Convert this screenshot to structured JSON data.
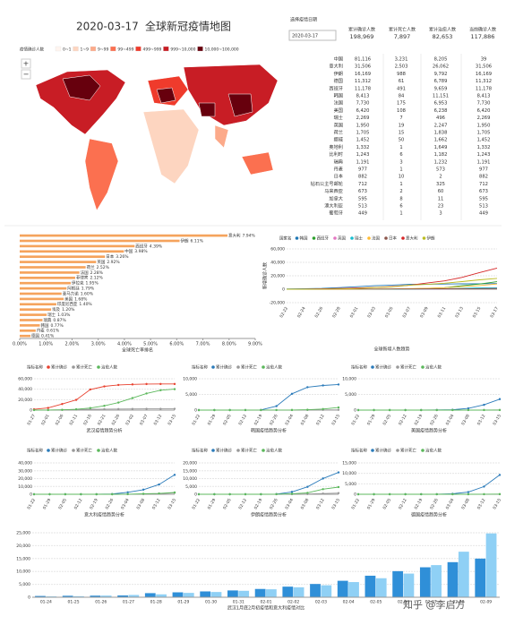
{
  "header": {
    "date": "2020-03-17",
    "title": "全球新冠疫情地图"
  },
  "date_selector": {
    "label": "选择疫情日期",
    "value": "2020-03-17"
  },
  "kpis": [
    {
      "label": "累计确诊人数",
      "value": "198,969",
      "color": "#e8412f"
    },
    {
      "label": "累计死亡人数",
      "value": "7,897",
      "color": "#333333"
    },
    {
      "label": "累计治愈人数",
      "value": "82,653",
      "color": "#2ca25f"
    },
    {
      "label": "当前确诊人数",
      "value": "117,886",
      "color": "#f39c12"
    }
  ],
  "map": {
    "legend_title": "疫情确诊人数",
    "ranges": [
      {
        "label": "0~1",
        "color": "#fff5f0"
      },
      {
        "label": "1~9",
        "color": "#fdd5c0"
      },
      {
        "label": "9~99",
        "color": "#fcaa8a"
      },
      {
        "label": "99~499",
        "color": "#fb7050"
      },
      {
        "label": "499~999",
        "color": "#ef3b2c"
      },
      {
        "label": "999~10,000",
        "color": "#c81d25"
      },
      {
        "label": "10,000~100,000",
        "color": "#67000d"
      }
    ]
  },
  "table": {
    "rows": [
      [
        "中国",
        "81,116",
        "3,231",
        "8,205",
        "39"
      ],
      [
        "意大利",
        "31,506",
        "2,503",
        "26,062",
        "31,506"
      ],
      [
        "伊朗",
        "16,169",
        "988",
        "9,792",
        "16,169"
      ],
      [
        "德国",
        "11,312",
        "61",
        "6,789",
        "11,312"
      ],
      [
        "西班牙",
        "11,178",
        "491",
        "9,659",
        "11,178"
      ],
      [
        "韩国",
        "8,413",
        "84",
        "11,151",
        "8,413"
      ],
      [
        "法国",
        "7,730",
        "175",
        "6,953",
        "7,730"
      ],
      [
        "美国",
        "6,420",
        "108",
        "6,238",
        "6,420"
      ],
      [
        "瑞士",
        "2,269",
        "7",
        "496",
        "2,269"
      ],
      [
        "英国",
        "1,950",
        "19",
        "2,247",
        "1,950"
      ],
      [
        "荷兰",
        "1,705",
        "15",
        "1,838",
        "1,705"
      ],
      [
        "挪威",
        "1,452",
        "50",
        "1,662",
        "1,452"
      ],
      [
        "奥地利",
        "1,332",
        "1",
        "1,649",
        "1,332"
      ],
      [
        "比利时",
        "1,243",
        "6",
        "1,182",
        "1,243"
      ],
      [
        "瑞典",
        "1,191",
        "3",
        "1,232",
        "1,191"
      ],
      [
        "丹麦",
        "977",
        "1",
        "573",
        "977"
      ],
      [
        "日本",
        "882",
        "10",
        "2",
        "882"
      ],
      [
        "钻石公主号邮轮",
        "712",
        "1",
        "325",
        "712"
      ],
      [
        "马来西亚",
        "673",
        "2",
        "60",
        "673"
      ],
      [
        "加拿大",
        "595",
        "8",
        "11",
        "595"
      ],
      [
        "澳大利亚",
        "513",
        "6",
        "23",
        "513"
      ],
      [
        "葡萄牙",
        "449",
        "1",
        "3",
        "449"
      ]
    ]
  },
  "watermark": "知乎 @李启方",
  "chart_data": [
    {
      "type": "hbar",
      "title": "全球死亡率排名",
      "color": "#f5a35c",
      "label_color": "#e8412f",
      "categories": [
        "意大利",
        "伊朗",
        "西班牙",
        "中国",
        "日本",
        "英国",
        "荷兰",
        "法国",
        "菲律宾",
        "伊拉克",
        "阿根廷",
        "圣马力诺",
        "美国",
        "印度尼西亚",
        "埃及",
        "瑞士",
        "瑞典",
        "韩国",
        "丹麦",
        "德国"
      ],
      "values": [
        7.94,
        6.11,
        4.39,
        3.98,
        3.26,
        2.92,
        2.52,
        2.28,
        2.12,
        1.95,
        1.79,
        1.6,
        1.68,
        1.4,
        1.2,
        1.03,
        0.87,
        0.77,
        0.61,
        0.41
      ],
      "value_labels": [
        "7.94%",
        "6.11%",
        "4.39%",
        "3.98%",
        "3.26%",
        "2.92%",
        "2.52%",
        "2.28%",
        "2.12%",
        "1.95%",
        "1.79%",
        "1.60%",
        "1.68%",
        "1.40%",
        "1.20%",
        "1.03%",
        "0.87%",
        "0.77%",
        "0.61%",
        "0.41%"
      ],
      "xlim": [
        0,
        9
      ],
      "xticks": [
        {
          "value": 0,
          "label": "0.00%"
        },
        {
          "value": 1,
          "label": "1.00%"
        },
        {
          "value": 2,
          "label": "2.00%"
        },
        {
          "value": 3,
          "label": "3.00%"
        },
        {
          "value": 4,
          "label": "4.00%"
        },
        {
          "value": 5,
          "label": "5.00%"
        },
        {
          "value": 6,
          "label": "6.00%"
        },
        {
          "value": 7,
          "label": "7.00%"
        },
        {
          "value": 8,
          "label": "8.00%"
        },
        {
          "value": 9,
          "label": "9.00%"
        }
      ]
    },
    {
      "type": "line",
      "title": "全球新增人数趋势",
      "y_label": "新增确诊人数",
      "legend_title": "国家名",
      "dots": false,
      "categories": [
        "02-22",
        "02-24",
        "02-26",
        "02-28",
        "03-01",
        "03-03",
        "03-05",
        "03-07",
        "03-09",
        "03-11",
        "03-13",
        "03-15",
        "03-17"
      ],
      "ylim": [
        -20000,
        60000
      ],
      "yticks": [
        {
          "value": -20000,
          "label": "-20,000"
        },
        0,
        {
          "value": 20000,
          "label": "20,000"
        },
        {
          "value": 40000,
          "label": "40,000"
        },
        {
          "value": 60000,
          "label": "60,000"
        }
      ],
      "series": [
        {
          "name": "韩国",
          "color": "#1f77b4",
          "values": [
            433,
            833,
            1261,
            2337,
            3736,
            5186,
            6088,
            7134,
            7478,
            7755,
            7979,
            8162,
            8413
          ]
        },
        {
          "name": "西班牙",
          "color": "#2ca02c",
          "values": [
            2,
            2,
            13,
            32,
            84,
            151,
            261,
            525,
            1231,
            2277,
            5232,
            7798,
            11178
          ]
        },
        {
          "name": "英国",
          "color": "#e377c2",
          "values": [
            9,
            13,
            13,
            20,
            36,
            51,
            116,
            206,
            321,
            460,
            798,
            1144,
            1950
          ]
        },
        {
          "name": "瑞士",
          "color": "#17becf",
          "values": [
            0,
            0,
            1,
            8,
            27,
            56,
            90,
            268,
            374,
            645,
            1139,
            2200,
            2269
          ]
        },
        {
          "name": "法国",
          "color": "#ffbb33",
          "values": [
            12,
            12,
            17,
            57,
            130,
            212,
            423,
            949,
            1412,
            2284,
            3667,
            5423,
            7730
          ]
        },
        {
          "name": "日本",
          "color": "#8c564b",
          "values": [
            132,
            157,
            189,
            228,
            256,
            284,
            349,
            455,
            530,
            639,
            701,
            780,
            882
          ]
        },
        {
          "name": "意大利",
          "color": "#d62728",
          "values": [
            62,
            229,
            470,
            1128,
            1694,
            2502,
            3858,
            5883,
            9172,
            12462,
            17660,
            24747,
            31506
          ]
        },
        {
          "name": "伊朗",
          "color": "#bcbd22",
          "values": [
            28,
            61,
            139,
            388,
            978,
            2336,
            3513,
            5823,
            7161,
            9000,
            11364,
            13938,
            16169
          ]
        }
      ]
    },
    {
      "type": "line",
      "title": "武汉疫情趋势分析",
      "legend_title": "指标名称",
      "dots": true,
      "categories": [
        "01-27",
        "02-01",
        "02-06",
        "02-11",
        "02-16",
        "02-21",
        "02-26",
        "03-02",
        "03-07",
        "03-12",
        "03-15"
      ],
      "ylim": [
        0,
        60000
      ],
      "yticks": [
        0,
        {
          "value": 20000,
          "label": "20,000"
        },
        {
          "value": 40000,
          "label": "40,000"
        },
        {
          "value": 60000,
          "label": "60,000"
        }
      ],
      "series": [
        {
          "name": "累计确诊",
          "color": "#e8412f",
          "values": [
            1590,
            4109,
            11618,
            19558,
            39462,
            45346,
            48137,
            49122,
            49948,
            50003,
            50003
          ]
        },
        {
          "name": "累计死亡",
          "color": "#999999",
          "values": [
            85,
            224,
            478,
            1036,
            1497,
            1836,
            2104,
            2282,
            2388,
            2430,
            2469
          ]
        },
        {
          "name": "治愈人数",
          "color": "#5cb85c",
          "values": [
            46,
            166,
            524,
            1566,
            3902,
            8207,
            14412,
            22981,
            31829,
            37989,
            40079
          ]
        }
      ]
    },
    {
      "type": "line",
      "title": "韩国疫情趋势分析",
      "legend_title": "指标名称",
      "dots": true,
      "categories": [
        "01-22",
        "01-29",
        "02-05",
        "02-12",
        "02-19",
        "02-26",
        "03-04",
        "03-08",
        "03-12",
        "03-15"
      ],
      "ylim": [
        0,
        10000
      ],
      "yticks": [
        0,
        {
          "value": 5000,
          "label": "5,000"
        },
        {
          "value": 10000,
          "label": "10,000"
        }
      ],
      "series": [
        {
          "name": "累计确诊",
          "color": "#2b7bba",
          "values": [
            1,
            4,
            23,
            28,
            46,
            1261,
            5186,
            7313,
            7869,
            8162
          ]
        },
        {
          "name": "累计死亡",
          "color": "#999999",
          "values": [
            0,
            0,
            0,
            0,
            0,
            12,
            28,
            50,
            66,
            75
          ]
        },
        {
          "name": "治愈人数",
          "color": "#5cb85c",
          "values": [
            0,
            0,
            0,
            7,
            16,
            22,
            34,
            118,
            333,
            834
          ]
        }
      ]
    },
    {
      "type": "line",
      "title": "美国疫情趋势分析",
      "legend_title": "指标名称",
      "dots": true,
      "categories": [
        "01-22",
        "01-29",
        "02-05",
        "02-12",
        "02-19",
        "02-26",
        "03-04",
        "03-08",
        "03-12",
        "03-15"
      ],
      "ylim": [
        0,
        10000
      ],
      "yticks": [
        0,
        {
          "value": 5000,
          "label": "5,000"
        },
        {
          "value": 10000,
          "label": "10,000"
        }
      ],
      "series": [
        {
          "name": "累计确诊",
          "color": "#2b7bba",
          "values": [
            1,
            5,
            12,
            13,
            15,
            60,
            122,
            541,
            1678,
            3499
          ]
        },
        {
          "name": "累计死亡",
          "color": "#999999",
          "values": [
            0,
            0,
            0,
            0,
            0,
            0,
            11,
            22,
            41,
            58
          ]
        },
        {
          "name": "治愈人数",
          "color": "#5cb85c",
          "values": [
            0,
            0,
            1,
            3,
            3,
            6,
            7,
            8,
            12,
            17
          ]
        }
      ]
    },
    {
      "type": "line",
      "title": "意大利疫情趋势分析",
      "legend_title": "指标名称",
      "dots": true,
      "categories": [
        "01-22",
        "01-29",
        "02-05",
        "02-12",
        "02-19",
        "02-26",
        "03-04",
        "03-08",
        "03-12",
        "03-15"
      ],
      "ylim": [
        0,
        40000
      ],
      "yticks": [
        0,
        {
          "value": 10000,
          "label": "10,000"
        },
        {
          "value": 20000,
          "label": "20,000"
        },
        {
          "value": 30000,
          "label": "30,000"
        },
        {
          "value": 40000,
          "label": "40,000"
        }
      ],
      "series": [
        {
          "name": "累计确诊",
          "color": "#2b7bba",
          "values": [
            0,
            2,
            3,
            3,
            3,
            322,
            2502,
            5883,
            12462,
            24747
          ]
        },
        {
          "name": "累计死亡",
          "color": "#999999",
          "values": [
            0,
            0,
            0,
            0,
            0,
            10,
            80,
            233,
            827,
            1809
          ]
        },
        {
          "name": "治愈人数",
          "color": "#5cb85c",
          "values": [
            0,
            0,
            0,
            0,
            0,
            1,
            160,
            589,
            1045,
            2335
          ]
        }
      ]
    },
    {
      "type": "line",
      "title": "伊朗疫情趋势分析",
      "legend_title": "指标名称",
      "dots": true,
      "categories": [
        "01-22",
        "01-29",
        "02-05",
        "02-12",
        "02-19",
        "02-26",
        "03-04",
        "03-08",
        "03-12",
        "03-15"
      ],
      "ylim": [
        0,
        20000
      ],
      "yticks": [
        0,
        {
          "value": 5000,
          "label": "5,000"
        },
        {
          "value": 10000,
          "label": "10,000"
        },
        {
          "value": 15000,
          "label": "15,000"
        },
        {
          "value": 20000,
          "label": "20,000"
        }
      ],
      "series": [
        {
          "name": "累计确诊",
          "color": "#2b7bba",
          "values": [
            0,
            0,
            0,
            0,
            5,
            139,
            1501,
            4747,
            10075,
            13938
          ]
        },
        {
          "name": "累计死亡",
          "color": "#999999",
          "values": [
            0,
            0,
            0,
            0,
            2,
            19,
            66,
            145,
            429,
            724
          ]
        },
        {
          "name": "治愈人数",
          "color": "#5cb85c",
          "values": [
            0,
            0,
            0,
            0,
            0,
            49,
            291,
            913,
            3276,
            4590
          ]
        }
      ]
    },
    {
      "type": "line",
      "title": "德国疫情趋势分析",
      "legend_title": "指标名称",
      "dots": true,
      "categories": [
        "01-22",
        "01-29",
        "02-05",
        "02-12",
        "02-19",
        "02-26",
        "03-04",
        "03-08",
        "03-12",
        "03-15"
      ],
      "ylim": [
        0,
        15000
      ],
      "yticks": [
        0,
        {
          "value": 5000,
          "label": "5,000"
        },
        {
          "value": 10000,
          "label": "10,000"
        },
        {
          "value": 15000,
          "label": "15,000"
        }
      ],
      "series": [
        {
          "name": "累计确诊",
          "color": "#2b7bba",
          "values": [
            0,
            4,
            12,
            16,
            16,
            16,
            262,
            1040,
            3675,
            9257
          ]
        },
        {
          "name": "累计死亡",
          "color": "#999999",
          "values": [
            0,
            0,
            0,
            0,
            0,
            0,
            0,
            2,
            8,
            24
          ]
        },
        {
          "name": "治愈人数",
          "color": "#5cb85c",
          "values": [
            0,
            0,
            0,
            1,
            12,
            14,
            16,
            16,
            46,
            67
          ]
        }
      ]
    },
    {
      "type": "groupbar",
      "title": "武汉1月底2月初疫情和意大利疫情对比",
      "categories": [
        "01-24",
        "01-25",
        "01-26",
        "01-27",
        "01-28",
        "01-29",
        "01-30",
        "01-31",
        "02-01",
        "02-02",
        "02-03",
        "02-04",
        "02-05",
        "02-06",
        "02-07",
        "02-08",
        "02-09"
      ],
      "ylim": [
        0,
        25000
      ],
      "yticks": [
        0,
        {
          "value": 5000,
          "label": "5,000"
        },
        {
          "value": 10000,
          "label": "10,000"
        },
        {
          "value": 15000,
          "label": "15,000"
        },
        {
          "value": 20000,
          "label": "20,000"
        },
        {
          "value": 25000,
          "label": "25,000"
        }
      ],
      "series": [
        {
          "color": "#2f8fd8",
          "values": [
            495,
            572,
            618,
            698,
            1590,
            1905,
            2261,
            2639,
            3215,
            4109,
            5142,
            6384,
            8351,
            10117,
            11618,
            13603,
            14982
          ]
        },
        {
          "color": "#8fd0f5",
          "values": [
            322,
            400,
            650,
            888,
            1128,
            1694,
            2036,
            2502,
            3089,
            3858,
            4636,
            5883,
            7375,
            9172,
            12462,
            17660,
            24747
          ]
        }
      ]
    }
  ]
}
